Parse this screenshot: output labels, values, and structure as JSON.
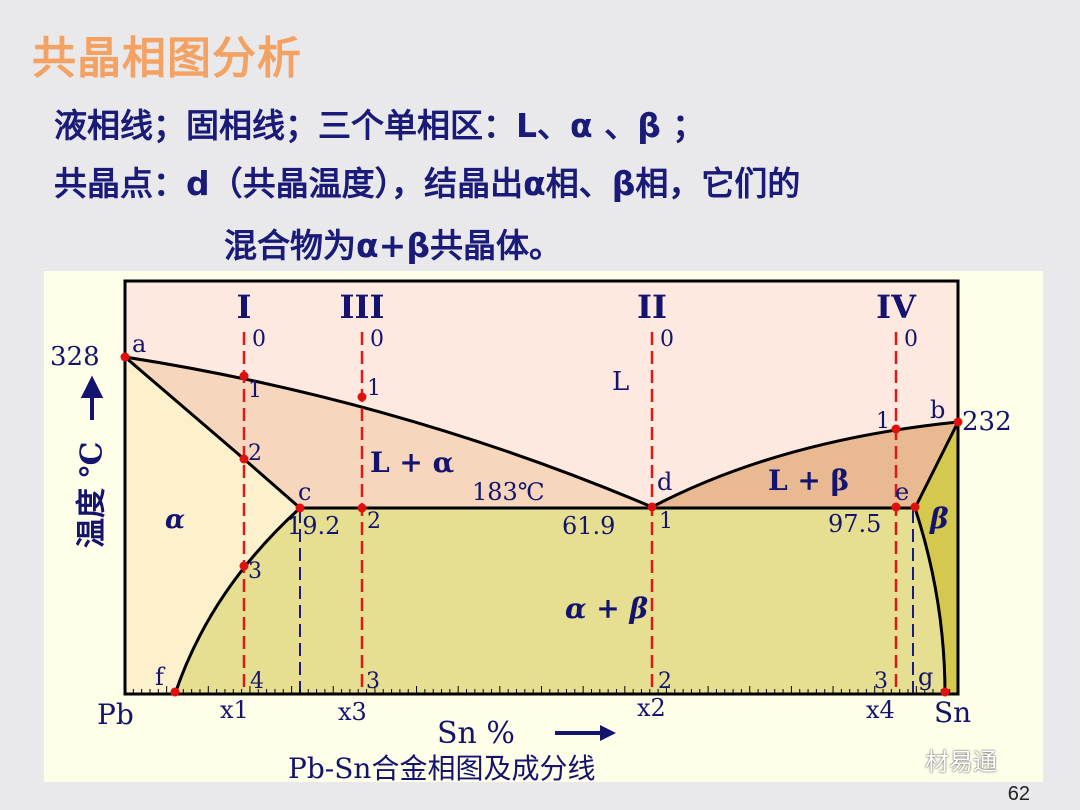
{
  "slide": {
    "title": "共晶相图分析",
    "line1": "液相线；固相线；三个单相区：L、α 、β ；",
    "line2": "共晶点：d（共晶温度），结晶出α相、β相，它们的",
    "line3": "混合物为α+β共晶体。",
    "page_number": "62",
    "watermark": "材易通"
  },
  "diagram": {
    "caption": "Pb-Sn合金相图及成分线",
    "y_axis_label": "温度 ℃",
    "x_axis_label": "Sn %",
    "left_element": "Pb",
    "right_element": "Sn",
    "temp_pb": "328",
    "temp_sn": "232",
    "eutectic_temp": "183℃",
    "comp_c": "19.2",
    "comp_d": "61.9",
    "comp_e": "97.5",
    "points": {
      "a": "a",
      "b": "b",
      "c": "c",
      "d": "d",
      "e": "e",
      "f": "f",
      "g": "g"
    },
    "regions": {
      "L": "L",
      "L_alpha": "L + α",
      "L_beta": "L + β",
      "alpha": "α",
      "beta": "β",
      "alpha_beta": "α + β"
    },
    "alloys": [
      {
        "roman": "I",
        "x_label": "x1",
        "marks": [
          "0",
          "1",
          "2",
          "3",
          "4"
        ]
      },
      {
        "roman": "III",
        "x_label": "x3",
        "marks": [
          "0",
          "1",
          "2",
          "3"
        ]
      },
      {
        "roman": "II",
        "x_label": "x2",
        "marks": [
          "0",
          "1",
          "2"
        ]
      },
      {
        "roman": "IV",
        "x_label": "x4",
        "marks": [
          "0",
          "1",
          "3"
        ]
      }
    ],
    "colors": {
      "liquid": "#fde9df",
      "l_alpha": "#f6d6bd",
      "alpha": "#fdf1cd",
      "alpha_beta": "#e6df92",
      "l_beta": "#e9b992",
      "beta": "#d5c84e",
      "alloy_line": "#e01818",
      "ref_line": "#1a1a8a",
      "point": "#e01010"
    }
  }
}
